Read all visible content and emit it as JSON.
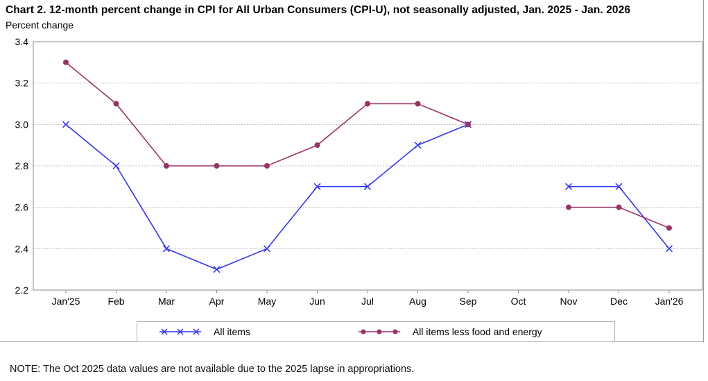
{
  "header": {
    "title": "Chart 2. 12-month percent change in CPI for All Urban Consumers (CPI-U), not seasonally adjusted, Jan. 2025 - Jan. 2026",
    "subtitle": "Percent change"
  },
  "chart_data": {
    "type": "line",
    "title": "Chart 2. 12-month percent change in CPI for All Urban Consumers (CPI-U), not seasonally adjusted, Jan. 2025 - Jan. 2026",
    "xlabel": "",
    "ylabel": "Percent change",
    "categories": [
      "Jan'25",
      "Feb",
      "Mar",
      "Apr",
      "May",
      "Jun",
      "Jul",
      "Aug",
      "Sep",
      "Oct",
      "Nov",
      "Dec",
      "Jan'26"
    ],
    "series": [
      {
        "name": "All items",
        "color": "#3333ff",
        "marker": "x",
        "values": [
          3.0,
          2.8,
          2.4,
          2.3,
          2.4,
          2.7,
          2.7,
          2.9,
          3.0,
          null,
          2.7,
          2.7,
          2.4
        ]
      },
      {
        "name": "All items less food and energy",
        "color": "#993366",
        "marker": "circle",
        "values": [
          3.3,
          3.1,
          2.8,
          2.8,
          2.8,
          2.9,
          3.1,
          3.1,
          3.0,
          null,
          2.6,
          2.6,
          2.5
        ]
      }
    ],
    "ylim": [
      2.2,
      3.4
    ],
    "ytick_step": 0.2,
    "grid": true,
    "legend_position": "bottom",
    "missing_data_note": "Oct 2025 values not plotted"
  },
  "colors": {
    "frame": "#888888",
    "gridline": "#bbbbbb",
    "tick": "#888888"
  },
  "note": "NOTE: The Oct 2025 data values are not available due to the 2025 lapse in appropriations."
}
